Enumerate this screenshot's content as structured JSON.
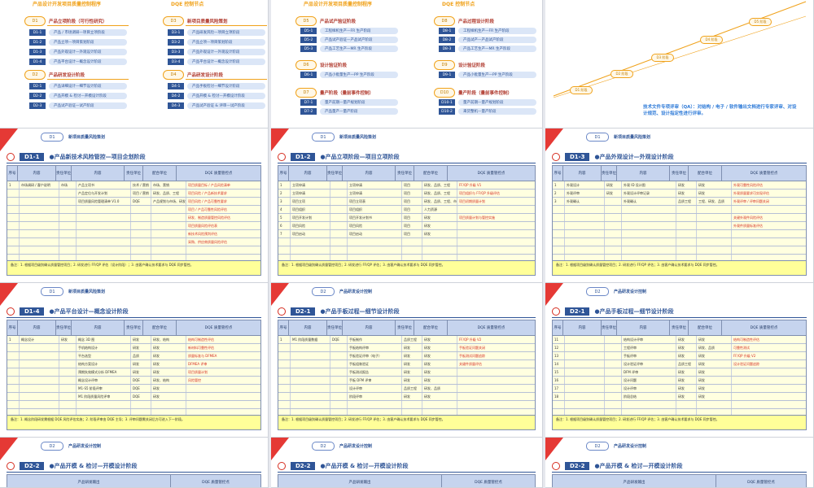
{
  "flow1": {
    "title_left": "产品设计开发项目质量控制程序",
    "title_right": "DQE 控制节点",
    "stages": [
      {
        "badge": "D1",
        "label": "产品立项阶段（可行性研究）"
      },
      {
        "badge": "D2",
        "label": "产品研发设计阶段"
      },
      {
        "badge": "D3",
        "label": "新项目质量风险策划"
      },
      {
        "badge": "D4",
        "label": "产品研发设计阶段"
      }
    ],
    "steps_a": [
      {
        "code": "D1-1",
        "text": "产品 / 市场调研—项目立项阶段"
      },
      {
        "code": "D1-2",
        "text": "产品立项—项目策划阶段"
      },
      {
        "code": "D1-3",
        "text": "产品外观设计—外观设计阶段"
      },
      {
        "code": "D1-4",
        "text": "产品平台设计—概念设计阶段"
      }
    ],
    "steps_b": [
      {
        "code": "D2-1",
        "text": "产品详细设计—细节设计阶段"
      },
      {
        "code": "D2-2",
        "text": "产品开模 & 检讨—开模设计阶段"
      },
      {
        "code": "D2-3",
        "text": "产品试产验证—试产阶段"
      }
    ],
    "steps_c": [
      {
        "code": "D3-1",
        "text": "产品研发风险—项目立项阶段"
      },
      {
        "code": "D3-2",
        "text": "产品立项—项目策划阶段"
      },
      {
        "code": "D3-3",
        "text": "产品外观设计—外观设计阶段"
      },
      {
        "code": "D3-4",
        "text": "产品平台设计—概念设计阶段"
      }
    ],
    "steps_d": [
      {
        "code": "D4-1",
        "text": "产品手板检讨—细节设计阶段"
      },
      {
        "code": "D4-2",
        "text": "产品开模 & 检讨—开模设计阶段"
      },
      {
        "code": "D4-3",
        "text": "产品试产验证 & 评审—试产阶段"
      }
    ]
  },
  "flow2": {
    "title_left": "产品设计开发项目质量控制程序",
    "title_right": "DQE 控制节点",
    "stages": [
      {
        "badge": "D5",
        "label": "产品试产验证阶段"
      },
      {
        "badge": "D6",
        "label": "设计验证阶段"
      },
      {
        "badge": "D7",
        "label": "量产阶段（量前事件控制）"
      },
      {
        "badge": "D8",
        "label": "产品过程设计阶段"
      },
      {
        "badge": "D9",
        "label": "设计验证阶段"
      },
      {
        "badge": "D10",
        "label": "量产阶段（量前事件控制）"
      }
    ],
    "steps_a": [
      {
        "code": "D5-1",
        "text": "工程样机生产—FR 生产阶段"
      },
      {
        "code": "D5-2",
        "text": "产品试产验证—产品试产阶段"
      },
      {
        "code": "D5-3",
        "text": "产品工艺生产—MR 生产阶段"
      }
    ],
    "steps_b": [
      {
        "code": "D6-1",
        "text": "产品小批量生产—PP 生产阶段"
      }
    ],
    "steps_c": [
      {
        "code": "D7-1",
        "text": "量产前期—量产规划阶段"
      },
      {
        "code": "D7-2",
        "text": "产品量产—量产阶段"
      }
    ],
    "steps_d": [
      {
        "code": "D8-1",
        "text": "工程样机生产—FR 生产阶段"
      },
      {
        "code": "D8-2",
        "text": "产品试产—产品试产阶段"
      },
      {
        "code": "D8-3",
        "text": "产品工艺生产—MR 生产阶段"
      }
    ],
    "steps_e": [
      {
        "code": "D9-1",
        "text": "产品小批量生产—PP 生产阶段"
      }
    ],
    "steps_f": [
      {
        "code": "D10-1",
        "text": "量产前期—量产规划阶段"
      },
      {
        "code": "D10-2",
        "text": "来货整机—量产阶段"
      }
    ]
  },
  "stairs": {
    "badges": [
      "D1 阶段",
      "D2 阶段",
      "D3 阶段",
      "D4 阶段",
      "D5 阶段"
    ],
    "caption": "技术文件专项评审（QA）：对结构 / 电子 / 软件输出文档进行专家评审、对设计规范、设计指定性进行评审。"
  },
  "tables": [
    {
      "section_badge": "D1",
      "section_title": "新项目质量风险策划",
      "code": "D1-1",
      "title": "产品新技术风险管控—项目企划阶段",
      "group_left": "客户 产品经理输入",
      "group_mid": "产品研发输出",
      "group_right": "DQE 质量管控点",
      "cols": [
        "序号",
        "内容",
        "责任单位",
        "内容",
        "责任单位",
        "配合单位"
      ],
      "rows": [
        [
          "1",
          "市场调研 / 客户说明",
          "市场",
          "产品立项书",
          "技术 / 营销",
          "市场、营销"
        ],
        [
          "",
          "",
          "",
          "产品定位与开发计划",
          "项目 / 营销",
          "研发、品质、工程"
        ],
        [
          "",
          "",
          "",
          "项目质量风险管理清单 V1.0",
          "DQE",
          "产品规划与市场、研发"
        ]
      ],
      "dqe": [
        "项目质量目标 / 产品风险清单",
        "项目风险 / 产品新技术要求",
        "项目风险 / 产品可靠性要求",
        "项目 / 产品可靠性风险评估",
        "研发、制造质量管控风险评估",
        "项目质量风险评估表",
        "新技术风险预判评估",
        "采购、供应商质量风险评估"
      ],
      "note": "备注：1. 根据项目级别确认质量管控项目；2. 研发进行 FF/QP 评估（设计阶段）；3. 由客户确认技术要求与 DQE 同步管控。"
    },
    {
      "section_badge": "D1",
      "section_title": "新项目质量风险策划",
      "code": "D1-2",
      "title": "产品立项阶段—项目立项阶段",
      "group_left": "客户 产品经理输入",
      "group_mid": "产品研发输出",
      "group_right": "DQE 质量管控点",
      "cols": [
        "序号",
        "内容",
        "责任单位",
        "内容",
        "责任单位",
        "配合单位"
      ],
      "rows": [
        [
          "1",
          "立项申请",
          "",
          "立项申请",
          "项目",
          "研发、品质、工程"
        ],
        [
          "2",
          "立项申请",
          "",
          "立项申请",
          "项目",
          "研发、品质、工程"
        ],
        [
          "3",
          "项目立项",
          "",
          "项目立项表",
          "项目",
          "研发、品质、工程、市场销售"
        ],
        [
          "4",
          "项目组织",
          "",
          "项目组织",
          "项目",
          "人力资源"
        ],
        [
          "5",
          "项目开发计划",
          "",
          "项目开发计划书",
          "项目",
          "研发"
        ],
        [
          "6",
          "项目风险",
          "",
          "项目风险",
          "项目",
          "研发"
        ],
        [
          "7",
          "项目启动",
          "",
          "项目启动",
          "项目",
          "研发"
        ]
      ],
      "dqe": [
        "FF/QP 升级 V1",
        "项目组织与 FF/QP 升级评估",
        "项目初期质量计划",
        "",
        "项目质量计划与管控实施",
        "",
        "",
        ""
      ],
      "note": "备注：1. 根据项目级别确认质量管控项目；2. 研发进行 FF/QP 评估；3. 由客户确认技术要求与 DQE 同步管控。"
    },
    {
      "section_badge": "D1",
      "section_title": "新项目质量风险策划",
      "code": "D1-3",
      "title": "产品外观设计—外观设计阶段",
      "group_left": "客户 产品经理输入",
      "group_mid": "产品研发输出",
      "group_right": "DQE 质量管控点",
      "cols": [
        "序号",
        "内容",
        "责任单位",
        "内容",
        "责任单位",
        "配合单位"
      ],
      "rows": [
        [
          "1",
          "外观设计",
          "研发",
          "外观 ID 设计图",
          "研发",
          "研发"
        ],
        [
          "2",
          "外观评审",
          "研发",
          "外观设计评审记录",
          "研发",
          "研发"
        ],
        [
          "3",
          "外观确认",
          "",
          "外观确认",
          "品质工程",
          "工程、研发、品质"
        ]
      ],
      "dqe": [
        "外观可靠性风险评估",
        "外观质量要求可实现评估",
        "外观评审 / 评审问题关闭",
        "",
        "关键外观件风险评估",
        "外观件质量标准评估",
        "",
        ""
      ],
      "note": "备注：1. 根据项目级别确认质量管控项目；2. 研发进行 FF/QP 评估；3. 由客户确认技术要求与 DQE 同步管控。"
    },
    {
      "section_badge": "D1",
      "section_title": "新项目质量风险策划",
      "code": "D1-4",
      "title": "产品平台设计—概念设计阶段",
      "group_left": "客户 产品经理输入",
      "group_mid": "产品研发输出",
      "group_right": "DQE 质量管控点",
      "cols": [
        "序号",
        "内容",
        "责任单位",
        "内容",
        "责任单位",
        "配合单位"
      ],
      "rows": [
        [
          "1",
          "概念设计",
          "研发",
          "概念 3D 图",
          "研发",
          "研发、结构"
        ],
        [
          "",
          "",
          "",
          "手机结构设计",
          "研发",
          "研发"
        ],
        [
          "",
          "",
          "",
          "平台选型",
          "品质",
          "研发"
        ],
        [
          "",
          "",
          "",
          "结构方案设计",
          "研发",
          "研发"
        ],
        [
          "",
          "",
          "",
          "预期失效模式分析 DFMEA",
          "研发",
          "研发"
        ],
        [
          "",
          "",
          "",
          "概念设计评审",
          "DQE",
          "研发、结构"
        ],
        [
          "",
          "",
          "",
          "M1-S5 阶段评审",
          "DQE",
          "研发"
        ],
        [
          "",
          "",
          "",
          "M1 阶段质量风险评审",
          "DQE",
          "研发"
        ]
      ],
      "dqe": [
        "结构可制造性评估",
        "新材料可靠性评估",
        "质量标准与 DFMEA",
        "DFMEA 评审",
        "项目质量计划",
        "风险管控",
        "",
        ""
      ],
      "note": "备注：1. 概念阶段研发需根据 DQE 风险评估实施；2. 阶段评审由 DQE 主导；3. 评审问题需关闭后方可进入下一阶段。"
    },
    {
      "section_badge": "D2",
      "section_title": "产品研发设计控制",
      "code": "D2-1",
      "title": "产品手板过程—细节设计阶段",
      "group_left": "客户 产品经理输入",
      "group_mid": "产品研发输出",
      "group_right": "DQE 质量管控点",
      "cols": [
        "序号",
        "内容",
        "责任单位",
        "内容",
        "责任单位",
        "配合单位"
      ],
      "rows": [
        [
          "1",
          "M1 阶段质量数据",
          "DQE",
          "手板制作",
          "品质工程",
          "研发"
        ],
        [
          "",
          "",
          "",
          "手板结构评审",
          "研发",
          "研发"
        ],
        [
          "",
          "",
          "",
          "手板验证评审（电子）",
          "研发",
          "研发"
        ],
        [
          "",
          "",
          "",
          "手板组装验证",
          "研发",
          "研发"
        ],
        [
          "",
          "",
          "",
          "手板测试报告",
          "研发",
          "研发"
        ],
        [
          "",
          "",
          "",
          "手板 DFM 评审",
          "研发",
          "研发"
        ],
        [
          "",
          "",
          "",
          "设计评审",
          "品质工程",
          "研发、品质"
        ],
        [
          "",
          "",
          "",
          "阶段评审",
          "研发",
          "研发"
        ]
      ],
      "dqe": [
        "FF/QP 升级 V2",
        "手板验证问题关闭",
        "手板测试问题追踪",
        "关键件质量评估",
        "",
        "",
        "",
        ""
      ],
      "note": "备注：1. 根据项目级别确认质量管控项目；2. 研发进行 FF/QP 评估；3. 由客户确认技术要求与 DQE 同步管控。"
    },
    {
      "section_badge": "D2",
      "section_title": "产品研发设计控制",
      "code": "D2-1",
      "title": "产品手板过程—细节设计阶段",
      "group_left": "客户 产品经理输入",
      "group_mid": "产品研发输出",
      "group_right": "DQE 质量管控点",
      "cols": [
        "序号",
        "内容",
        "责任单位",
        "内容",
        "责任单位",
        "配合单位"
      ],
      "rows": [
        [
          "11",
          "",
          "",
          "结构设计评审",
          "研发",
          "研发"
        ],
        [
          "12",
          "",
          "",
          "工程评审",
          "研发",
          "研发、品质"
        ],
        [
          "13",
          "",
          "",
          "手板评审",
          "研发",
          "研发"
        ],
        [
          "14",
          "",
          "",
          "设计验证评审",
          "品质工程",
          "研发"
        ],
        [
          "15",
          "",
          "",
          "DFM 评审",
          "研发",
          "研发"
        ],
        [
          "16",
          "",
          "",
          "设计问题",
          "研发",
          "研发"
        ],
        [
          "17",
          "",
          "",
          "设计评审",
          "研发",
          "研发"
        ],
        [
          "18",
          "",
          "",
          "阶段总结",
          "研发",
          "研发"
        ]
      ],
      "dqe": [
        "结构可制造性评估",
        "可靠性测试",
        "FF/QP 升级 V2",
        "设计验证问题追踪",
        "",
        "",
        "",
        ""
      ],
      "note": "备注：1. 根据项目级别确认质量管控项目；2. 研发进行 FF/QP 评估；3. 由客户确认技术要求与 DQE 同步管控。"
    }
  ],
  "bottom": [
    {
      "section_badge": "D2",
      "section_title": "产品研发设计控制",
      "code": "D2-2",
      "title": "产品开模 & 检讨—开模设计阶段",
      "group_mid": "产品研发输出",
      "group_right": "DQE 质量管控点"
    },
    {
      "section_badge": "D2",
      "section_title": "产品研发设计控制",
      "code": "D2-2",
      "title": "产品开模 & 检讨—开模设计阶段",
      "group_mid": "产品研发输出",
      "group_right": "DQE 质量管控点"
    },
    {
      "section_badge": "D2",
      "section_title": "产品研发设计控制",
      "code": "D2-2",
      "title": "产品开模 & 检讨—开模设计阶段",
      "group_mid": "产品研发输出",
      "group_right": "DQE 质量管控点"
    }
  ]
}
